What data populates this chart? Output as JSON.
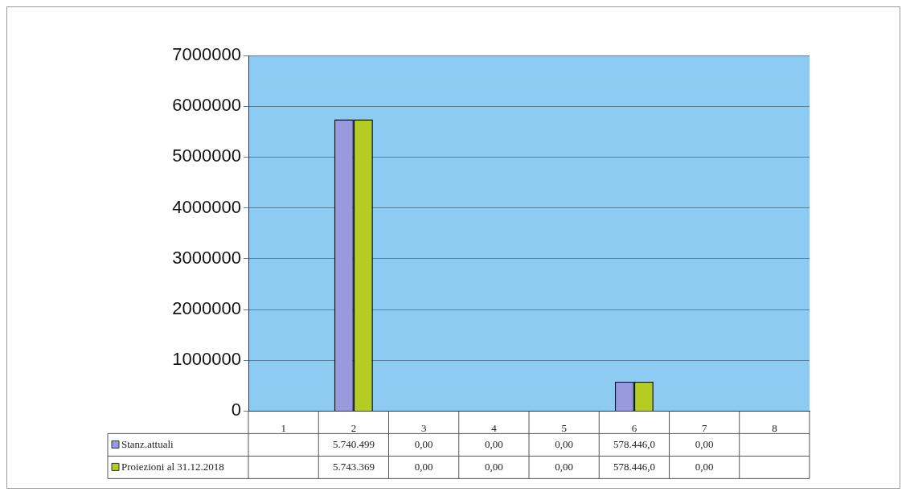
{
  "chart_data": {
    "type": "bar",
    "categories": [
      "1",
      "2",
      "3",
      "4",
      "5",
      "6",
      "7",
      "8"
    ],
    "series": [
      {
        "name": "Stanz.attuali",
        "color": "#9999dd",
        "values": [
          null,
          5740499,
          0,
          0,
          0,
          578446,
          0,
          null
        ],
        "value_labels": [
          null,
          "5.740.499",
          "0,00",
          "0,00",
          "0,00",
          "578.446,0",
          "0,00",
          null
        ]
      },
      {
        "name": "Proiezioni al 31.12.2018",
        "color": "#b5cc22",
        "values": [
          null,
          5743369,
          0,
          0,
          0,
          578446,
          0,
          null
        ],
        "value_labels": [
          null,
          "5.743.369",
          "0,00",
          "0,00",
          "0,00",
          "578.446,0",
          "0,00",
          null
        ]
      }
    ],
    "ylim": [
      0,
      7000000
    ],
    "yticks": [
      0,
      1000000,
      2000000,
      3000000,
      4000000,
      5000000,
      6000000,
      7000000
    ],
    "grid": "y",
    "legend": "bottom"
  }
}
